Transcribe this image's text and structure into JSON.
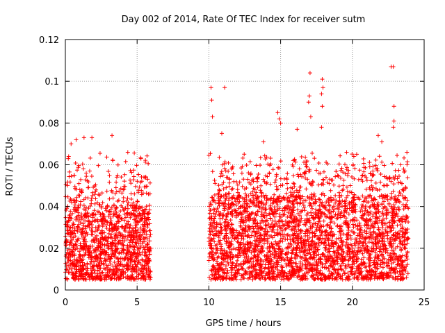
{
  "chart_data": {
    "type": "scatter",
    "title": "Day 002 of 2014, Rate Of TEC Index for receiver sutm",
    "xlabel": "GPS time / hours",
    "ylabel": "ROTI / TECUs",
    "xlim": [
      0,
      25
    ],
    "ylim": [
      0,
      0.12
    ],
    "xticks": [
      0,
      5,
      10,
      15,
      20,
      25
    ],
    "yticks": [
      0,
      0.02,
      0.04,
      0.06,
      0.08,
      0.1,
      0.12
    ],
    "xtick_labels": [
      "0",
      "5",
      "10",
      "15",
      "20",
      "25"
    ],
    "ytick_labels": [
      "0",
      "0.02",
      "0.04",
      "0.06",
      "0.08",
      "0.1",
      "0.12"
    ],
    "grid": true,
    "marker": "+",
    "marker_color": "#ff0000",
    "series": [
      {
        "name": "ROTI",
        "segments": [
          {
            "x_start": 0.0,
            "x_end": 5.95,
            "typical_low": 0.005,
            "typical_high": 0.045
          },
          {
            "x_start": 10.0,
            "x_end": 23.9,
            "typical_low": 0.005,
            "typical_high": 0.05
          }
        ],
        "notable_points": [
          {
            "x": 0.4,
            "y": 0.07
          },
          {
            "x": 0.75,
            "y": 0.072
          },
          {
            "x": 1.3,
            "y": 0.073
          },
          {
            "x": 1.85,
            "y": 0.073
          },
          {
            "x": 3.25,
            "y": 0.074
          },
          {
            "x": 4.35,
            "y": 0.066
          },
          {
            "x": 10.15,
            "y": 0.097
          },
          {
            "x": 10.2,
            "y": 0.091
          },
          {
            "x": 10.25,
            "y": 0.083
          },
          {
            "x": 11.1,
            "y": 0.097
          },
          {
            "x": 10.9,
            "y": 0.075
          },
          {
            "x": 13.8,
            "y": 0.071
          },
          {
            "x": 14.8,
            "y": 0.085
          },
          {
            "x": 14.9,
            "y": 0.082
          },
          {
            "x": 15.0,
            "y": 0.08
          },
          {
            "x": 16.15,
            "y": 0.077
          },
          {
            "x": 17.05,
            "y": 0.104
          },
          {
            "x": 17.0,
            "y": 0.093
          },
          {
            "x": 16.95,
            "y": 0.09
          },
          {
            "x": 17.1,
            "y": 0.083
          },
          {
            "x": 17.9,
            "y": 0.101
          },
          {
            "x": 17.95,
            "y": 0.097
          },
          {
            "x": 17.85,
            "y": 0.094
          },
          {
            "x": 17.9,
            "y": 0.088
          },
          {
            "x": 17.85,
            "y": 0.078
          },
          {
            "x": 21.8,
            "y": 0.074
          },
          {
            "x": 22.05,
            "y": 0.071
          },
          {
            "x": 22.7,
            "y": 0.107
          },
          {
            "x": 22.85,
            "y": 0.107
          },
          {
            "x": 22.9,
            "y": 0.088
          },
          {
            "x": 22.9,
            "y": 0.081
          },
          {
            "x": 22.85,
            "y": 0.078
          },
          {
            "x": 23.8,
            "y": 0.066
          },
          {
            "x": 20.1,
            "y": 0.064
          },
          {
            "x": 19.6,
            "y": 0.066
          }
        ]
      }
    ]
  }
}
